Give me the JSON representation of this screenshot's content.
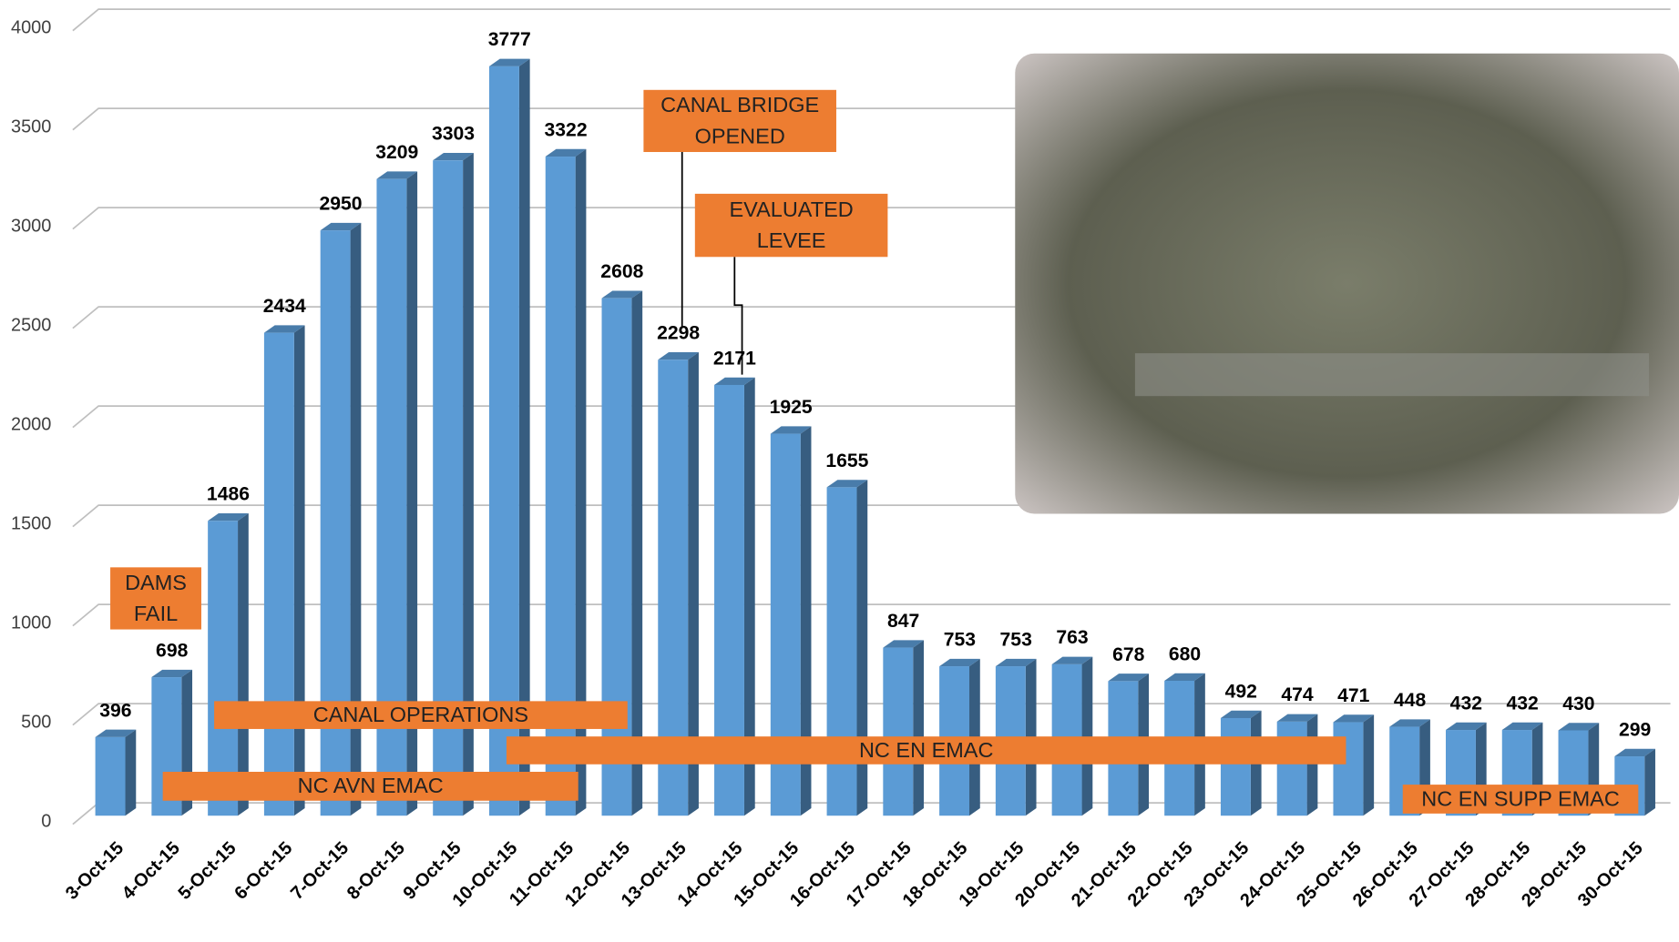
{
  "chart_data": {
    "type": "bar",
    "categories": [
      "3-Oct-15",
      "4-Oct-15",
      "5-Oct-15",
      "6-Oct-15",
      "7-Oct-15",
      "8-Oct-15",
      "9-Oct-15",
      "10-Oct-15",
      "11-Oct-15",
      "12-Oct-15",
      "13-Oct-15",
      "14-Oct-15",
      "15-Oct-15",
      "16-Oct-15",
      "17-Oct-15",
      "18-Oct-15",
      "19-Oct-15",
      "20-Oct-15",
      "21-Oct-15",
      "22-Oct-15",
      "23-Oct-15",
      "24-Oct-15",
      "25-Oct-15",
      "26-Oct-15",
      "27-Oct-15",
      "28-Oct-15",
      "29-Oct-15",
      "30-Oct-15"
    ],
    "values": [
      396,
      698,
      1486,
      2434,
      2950,
      3209,
      3303,
      3777,
      3322,
      2608,
      2298,
      2171,
      1925,
      1655,
      847,
      753,
      753,
      763,
      678,
      680,
      492,
      474,
      471,
      448,
      432,
      432,
      430,
      299
    ],
    "color": "#5b9bd5",
    "ylim": [
      0,
      4000
    ],
    "yticks": [
      0,
      500,
      1000,
      1500,
      2000,
      2500,
      3000,
      3500,
      4000
    ],
    "grid": true,
    "annotations": [
      [
        "DAMS",
        "FAIL"
      ],
      [
        "CANAL BRIDGE",
        "OPENED"
      ],
      [
        "EVALUATED",
        "LEVEE"
      ],
      [
        "CANAL OPERATIONS"
      ],
      [
        "NC AVN EMAC"
      ],
      [
        "NC EN EMAC"
      ],
      [
        "NC EN SUPP EMAC"
      ]
    ],
    "annotation_color": "#ed7d31"
  }
}
